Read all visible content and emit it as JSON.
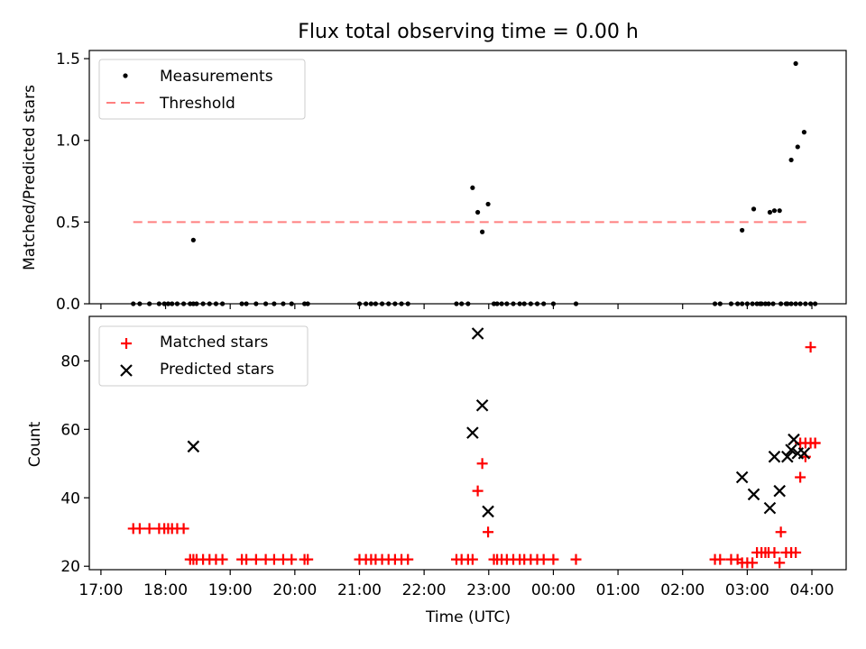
{
  "chart_data": {
    "title": "Flux total observing time = 0.00 h",
    "xlabel": "Time (UTC)",
    "x_unit": "hours since 17:00 UTC",
    "xlim": [
      -0.18,
      11.53
    ],
    "x_ticks": [
      {
        "value": 0,
        "label": "17:00"
      },
      {
        "value": 1,
        "label": "18:00"
      },
      {
        "value": 2,
        "label": "19:00"
      },
      {
        "value": 3,
        "label": "20:00"
      },
      {
        "value": 4,
        "label": "21:00"
      },
      {
        "value": 5,
        "label": "22:00"
      },
      {
        "value": 6,
        "label": "23:00"
      },
      {
        "value": 7,
        "label": "00:00"
      },
      {
        "value": 8,
        "label": "01:00"
      },
      {
        "value": 9,
        "label": "02:00"
      },
      {
        "value": 10,
        "label": "03:00"
      },
      {
        "value": 11,
        "label": "04:00"
      }
    ],
    "panels": [
      {
        "type": "scatter",
        "ylabel": "Matched/Predicted stars",
        "ylim": [
          0,
          1.55
        ],
        "y_ticks": [
          {
            "value": 0,
            "label": "0.0"
          },
          {
            "value": 0.5,
            "label": "0.5"
          },
          {
            "value": 1.0,
            "label": "1.0"
          },
          {
            "value": 1.5,
            "label": "1.5"
          }
        ],
        "legend": {
          "position": "top-left",
          "labels": [
            "Measurements",
            "Threshold"
          ]
        },
        "threshold": {
          "name": "Threshold",
          "value": 0.5,
          "x_range": [
            0.5,
            10.98
          ],
          "color": "#ff7f7f"
        },
        "series": [
          {
            "name": "Measurements",
            "marker": "dot",
            "color": "#000000",
            "x": [
              0.5,
              0.6,
              0.75,
              0.9,
              0.98,
              1.04,
              1.1,
              1.18,
              1.28,
              1.38,
              1.43,
              1.48,
              1.58,
              1.68,
              1.78,
              1.88,
              2.18,
              2.25,
              2.4,
              2.55,
              2.68,
              2.82,
              2.95,
              3.15,
              3.2,
              4.0,
              4.1,
              4.18,
              4.25,
              4.35,
              4.45,
              4.55,
              4.65,
              4.75,
              5.5,
              5.58,
              5.68,
              6.08,
              6.13,
              6.2,
              6.28,
              6.38,
              6.48,
              6.55,
              6.65,
              6.75,
              6.85,
              7.0,
              7.35,
              9.5,
              9.58,
              9.75,
              9.85,
              9.92,
              10.0,
              10.08,
              10.28,
              10.33,
              10.6,
              10.68,
              10.75,
              10.82,
              10.9,
              10.98,
              11.05,
              1.43,
              5.75,
              5.83,
              5.9,
              5.99,
              9.92,
              10.1,
              10.35,
              10.42,
              10.5,
              10.68,
              10.78,
              10.88
            ],
            "y": [
              0,
              0,
              0,
              0,
              0,
              0,
              0,
              0,
              0,
              0,
              0,
              0,
              0,
              0,
              0,
              0,
              0,
              0,
              0,
              0,
              0,
              0,
              0,
              0,
              0,
              0,
              0,
              0,
              0,
              0,
              0,
              0,
              0,
              0,
              0,
              0,
              0,
              0,
              0,
              0,
              0,
              0,
              0,
              0,
              0,
              0,
              0,
              0,
              0,
              0,
              0,
              0,
              0,
              0,
              0,
              0,
              0,
              0,
              0,
              0,
              0,
              0,
              0,
              0,
              0,
              0.39,
              0.71,
              0.56,
              0.44,
              0.61,
              0.45,
              0.58,
              0.56,
              0.57,
              0.57,
              0.88,
              0.96,
              1.05
            ]
          },
          {
            "name": "Measurements-extra",
            "marker": "dot",
            "color": "#000000",
            "x": [
              10.15,
              10.22,
              10.2,
              10.4,
              10.52,
              10.62,
              10.75
            ],
            "y": [
              0,
              0,
              0,
              0,
              0,
              0,
              1.47
            ]
          }
        ]
      },
      {
        "type": "scatter",
        "ylabel": "Count",
        "ylim": [
          19,
          93
        ],
        "y_ticks": [
          {
            "value": 20,
            "label": "20"
          },
          {
            "value": 40,
            "label": "40"
          },
          {
            "value": 60,
            "label": "60"
          },
          {
            "value": 80,
            "label": "80"
          }
        ],
        "legend": {
          "position": "top-left",
          "labels": [
            "Matched stars",
            "Predicted stars"
          ]
        },
        "series": [
          {
            "name": "Matched stars",
            "marker": "plus",
            "color": "#ff0000",
            "x": [
              0.5,
              0.6,
              0.75,
              0.9,
              0.98,
              1.04,
              1.1,
              1.18,
              1.28,
              1.38,
              1.43,
              1.48,
              1.58,
              1.68,
              1.78,
              1.88,
              2.18,
              2.25,
              2.4,
              2.55,
              2.68,
              2.82,
              2.95,
              3.15,
              3.2,
              4.0,
              4.1,
              4.18,
              4.25,
              4.35,
              4.45,
              4.55,
              4.65,
              4.75,
              5.5,
              5.58,
              5.68,
              5.75,
              5.83,
              5.9,
              5.99,
              6.08,
              6.13,
              6.2,
              6.28,
              6.38,
              6.48,
              6.55,
              6.65,
              6.75,
              6.85,
              7.0,
              7.35,
              9.5,
              9.58,
              9.75,
              9.85,
              9.92,
              10.0,
              10.08,
              10.15,
              10.22,
              10.28,
              10.33,
              10.42,
              10.5,
              10.52,
              10.6,
              10.68,
              10.75,
              10.82,
              10.9,
              10.98,
              11.05
            ],
            "y": [
              31,
              31,
              31,
              31,
              31,
              31,
              31,
              31,
              31,
              22,
              22,
              22,
              22,
              22,
              22,
              22,
              22,
              22,
              22,
              22,
              22,
              22,
              22,
              22,
              22,
              22,
              22,
              22,
              22,
              22,
              22,
              22,
              22,
              22,
              22,
              22,
              22,
              22,
              42,
              50,
              30,
              22,
              22,
              22,
              22,
              22,
              22,
              22,
              22,
              22,
              22,
              22,
              22,
              22,
              22,
              22,
              22,
              21,
              21,
              21,
              24,
              24,
              24,
              24,
              24,
              21,
              30,
              24,
              24,
              24,
              46,
              52,
              84,
              56
            ]
          },
          {
            "name": "Matched stars-extra",
            "marker": "plus",
            "color": "#ff0000",
            "x": [
              10.82,
              10.9,
              10.98,
              11.05
            ],
            "y": [
              56,
              56,
              56,
              56
            ]
          },
          {
            "name": "Predicted stars",
            "marker": "x",
            "color": "#000000",
            "x": [
              1.43,
              5.75,
              5.83,
              5.9,
              5.99,
              9.92,
              10.1,
              10.35,
              10.42,
              10.5,
              10.62,
              10.68,
              10.72,
              10.78,
              10.88
            ],
            "y": [
              55,
              59,
              88,
              67,
              36,
              46,
              41,
              37,
              52,
              42,
              52,
              54,
              57,
              53,
              53
            ]
          }
        ]
      }
    ]
  }
}
